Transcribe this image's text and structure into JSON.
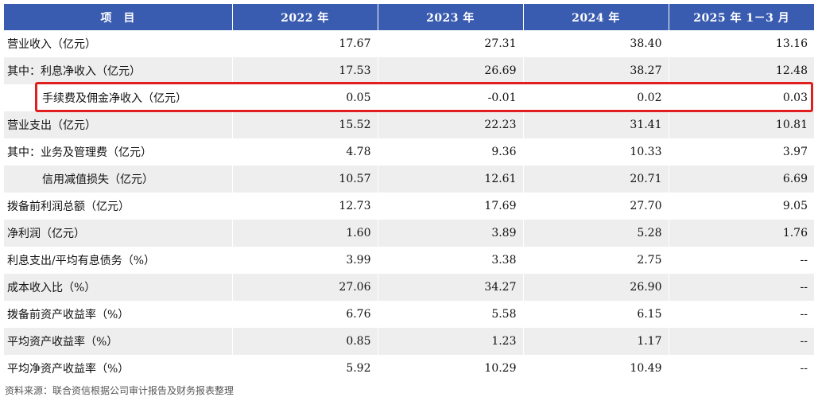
{
  "table": {
    "headers": [
      "项　目",
      "2022 年",
      "2023 年",
      "2024 年",
      "2025 年 1－3 月"
    ],
    "rows": [
      {
        "label": "营业收入（亿元）",
        "indent": false,
        "values": [
          "17.67",
          "27.31",
          "38.40",
          "13.16"
        ]
      },
      {
        "label": "其中：利息净收入（亿元）",
        "indent": false,
        "values": [
          "17.53",
          "26.69",
          "38.27",
          "12.48"
        ]
      },
      {
        "label": "手续费及佣金净收入（亿元）",
        "indent": true,
        "values": [
          "0.05",
          "-0.01",
          "0.02",
          "0.03"
        ]
      },
      {
        "label": "营业支出（亿元）",
        "indent": false,
        "values": [
          "15.52",
          "22.23",
          "31.41",
          "10.81"
        ]
      },
      {
        "label": "其中：业务及管理费（亿元）",
        "indent": false,
        "values": [
          "4.78",
          "9.36",
          "10.33",
          "3.97"
        ]
      },
      {
        "label": "信用减值损失（亿元）",
        "indent": true,
        "values": [
          "10.57",
          "12.61",
          "20.71",
          "6.69"
        ]
      },
      {
        "label": "拨备前利润总额（亿元）",
        "indent": false,
        "values": [
          "12.73",
          "17.69",
          "27.70",
          "9.05"
        ]
      },
      {
        "label": "净利润（亿元）",
        "indent": false,
        "values": [
          "1.60",
          "3.89",
          "5.28",
          "1.76"
        ]
      },
      {
        "label": "利息支出/平均有息债务（%）",
        "indent": false,
        "values": [
          "3.99",
          "3.38",
          "2.75",
          "--"
        ]
      },
      {
        "label": "成本收入比（%）",
        "indent": false,
        "values": [
          "27.06",
          "34.27",
          "26.90",
          "--"
        ]
      },
      {
        "label": "拨备前资产收益率（%）",
        "indent": false,
        "values": [
          "6.76",
          "5.58",
          "6.15",
          "--"
        ]
      },
      {
        "label": "平均资产收益率（%）",
        "indent": false,
        "values": [
          "0.85",
          "1.23",
          "1.17",
          "--"
        ]
      },
      {
        "label": "平均净资产收益率（%）",
        "indent": false,
        "values": [
          "5.92",
          "10.29",
          "10.49",
          "--"
        ]
      }
    ]
  },
  "source": "资料来源：联合资信根据公司审计报告及财务报表整理",
  "colors": {
    "header_bg": "#3a5cb0",
    "stripe_bg": "#eeeeee",
    "highlight_border": "#e02020"
  }
}
